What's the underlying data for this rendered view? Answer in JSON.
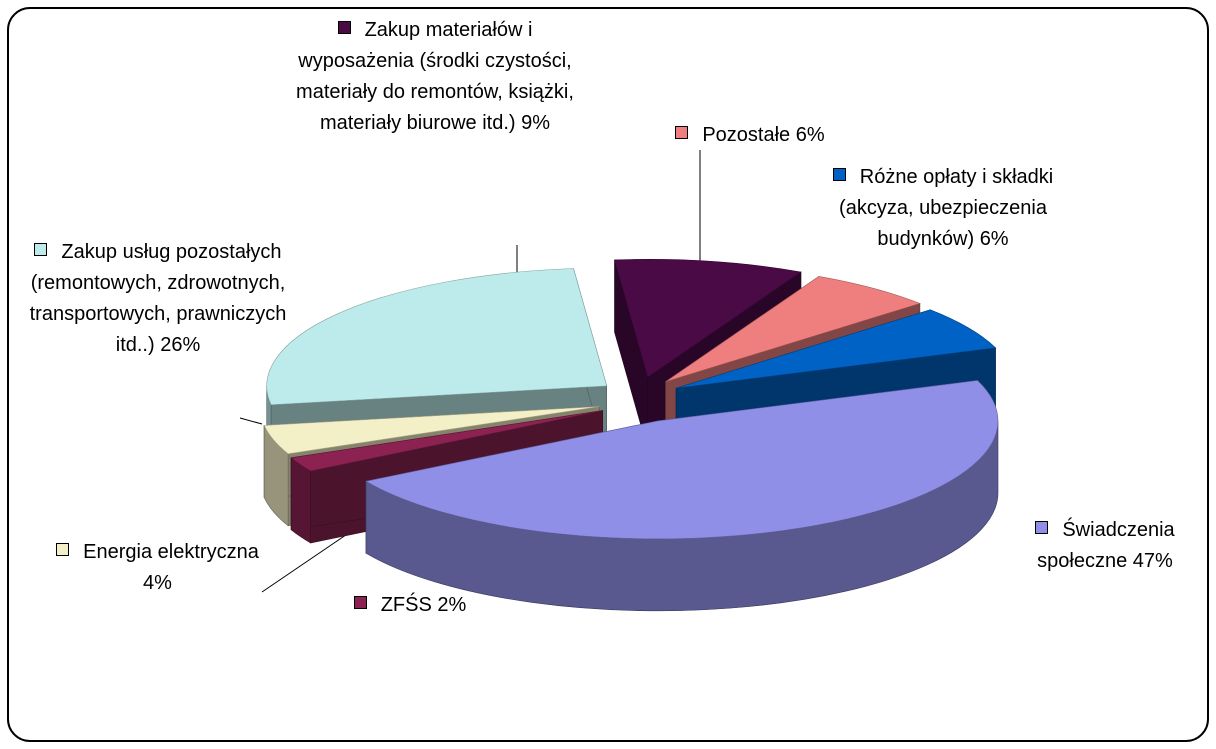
{
  "chart_data": {
    "type": "pie",
    "categories": [
      "Świadczenia społeczne",
      "ZFŚS",
      "Energia elektryczna",
      "Zakup usług pozostałych (remontowych, zdrowotnych, transportowych, prawniczych itd..)",
      "Zakup materiałów i wyposażenia (środki czystości, materiały do remontów, książki, materiały biurowe itd.)",
      "Pozostałe",
      "Różne opłaty i składki (akcyza, ubezpieczenia budynków)"
    ],
    "values": [
      47,
      2,
      4,
      26,
      9,
      6,
      6
    ],
    "value_labels": [
      "47%",
      "2%",
      "4%",
      "26%",
      "9%",
      "6%",
      "6%"
    ],
    "colors": [
      "#8f8fe8",
      "#8b2252",
      "#f3efc6",
      "#bdeaea",
      "#4a0a46",
      "#ef7f7f",
      "#0062c4"
    ]
  }
}
